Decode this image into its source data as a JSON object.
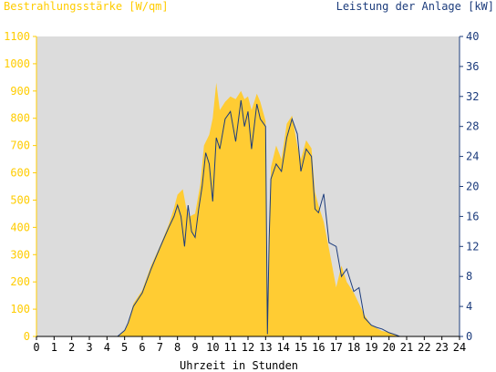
{
  "chart_data": {
    "type": "area",
    "left_axis_label": "Bestrahlungsstärke [W/qm]",
    "right_axis_label": "Leistung der Anlage [kW]",
    "xlabel": "Uhrzeit in Stunden",
    "xlim": [
      0,
      24
    ],
    "x_ticks": [
      "0",
      "1",
      "2",
      "3",
      "4",
      "5",
      "6",
      "7",
      "8",
      "9",
      "10",
      "11",
      "12",
      "13",
      "14",
      "15",
      "16",
      "17",
      "18",
      "19",
      "20",
      "21",
      "22",
      "23",
      "24"
    ],
    "ylim_left": [
      0,
      1100
    ],
    "y_ticks_left": [
      "0",
      "100",
      "200",
      "300",
      "400",
      "500",
      "600",
      "700",
      "800",
      "900",
      "1000",
      "1100"
    ],
    "ylim_right": [
      0,
      40
    ],
    "y_ticks_right": [
      "0",
      "4",
      "8",
      "12",
      "16",
      "20",
      "24",
      "28",
      "32",
      "36",
      "40"
    ],
    "grid": false,
    "colors": {
      "irradiance_fill": "#ffcc33",
      "power_line": "#1c3c7c",
      "plot_bg": "#dcdcdc",
      "left_axis": "#ffcc00",
      "right_axis": "#1c3c7c"
    },
    "series": [
      {
        "name": "Bestrahlungsstärke",
        "axis": "left",
        "style": "area",
        "x": [
          0,
          4.6,
          5.0,
          5.2,
          5.5,
          6.0,
          6.5,
          7.0,
          7.5,
          7.8,
          8.0,
          8.3,
          8.5,
          8.7,
          9.0,
          9.3,
          9.5,
          9.8,
          10.0,
          10.2,
          10.4,
          10.7,
          11.0,
          11.3,
          11.6,
          11.8,
          12.0,
          12.2,
          12.5,
          12.7,
          13.0,
          13.1,
          13.2,
          13.3,
          13.6,
          13.9,
          14.2,
          14.5,
          14.8,
          15.0,
          15.3,
          15.6,
          15.8,
          16.0,
          16.3,
          16.6,
          17.0,
          17.3,
          17.6,
          18.0,
          18.3,
          18.6,
          19.0,
          19.3,
          19.6,
          20.0,
          20.4,
          20.6,
          21.0,
          24
        ],
        "y": [
          0,
          0,
          20,
          50,
          120,
          170,
          260,
          330,
          410,
          470,
          520,
          540,
          470,
          440,
          450,
          560,
          700,
          740,
          800,
          930,
          830,
          860,
          880,
          870,
          900,
          870,
          880,
          830,
          890,
          860,
          790,
          10,
          380,
          620,
          700,
          650,
          780,
          810,
          700,
          650,
          720,
          690,
          530,
          480,
          420,
          320,
          180,
          260,
          200,
          160,
          120,
          80,
          40,
          30,
          20,
          15,
          5,
          0,
          0,
          0
        ]
      },
      {
        "name": "Leistung der Anlage",
        "axis": "right",
        "style": "line",
        "x": [
          0,
          4.6,
          5.0,
          5.2,
          5.5,
          6.0,
          6.5,
          7.0,
          7.5,
          7.8,
          8.0,
          8.2,
          8.4,
          8.6,
          8.8,
          9.0,
          9.2,
          9.4,
          9.6,
          9.8,
          10.0,
          10.2,
          10.4,
          10.7,
          11.0,
          11.3,
          11.6,
          11.8,
          12.0,
          12.2,
          12.5,
          12.7,
          13.0,
          13.1,
          13.2,
          13.3,
          13.6,
          13.9,
          14.2,
          14.5,
          14.8,
          15.0,
          15.3,
          15.6,
          15.8,
          16.0,
          16.3,
          16.6,
          17.0,
          17.3,
          17.6,
          18.0,
          18.3,
          18.6,
          19.0,
          19.3,
          19.6,
          20.0,
          20.4,
          20.6,
          21.0,
          24
        ],
        "y": [
          0,
          0,
          0.8,
          1.8,
          4.0,
          5.8,
          9.0,
          11.8,
          14.5,
          16.0,
          17.5,
          16.0,
          12.0,
          17.5,
          14.0,
          13.2,
          17.0,
          20.0,
          24.5,
          23.0,
          18.0,
          26.5,
          25.0,
          29.0,
          30.0,
          26.0,
          31.5,
          28.0,
          30.0,
          25.0,
          31.0,
          29.0,
          28.0,
          0.3,
          13.0,
          21.0,
          23.0,
          22.0,
          26.5,
          29.0,
          27.0,
          22.0,
          25.0,
          24.0,
          17.0,
          16.5,
          19.0,
          12.5,
          12.0,
          8.0,
          9.0,
          6.0,
          6.5,
          2.5,
          1.5,
          1.2,
          1.0,
          0.5,
          0.2,
          0,
          0,
          0
        ]
      }
    ]
  }
}
